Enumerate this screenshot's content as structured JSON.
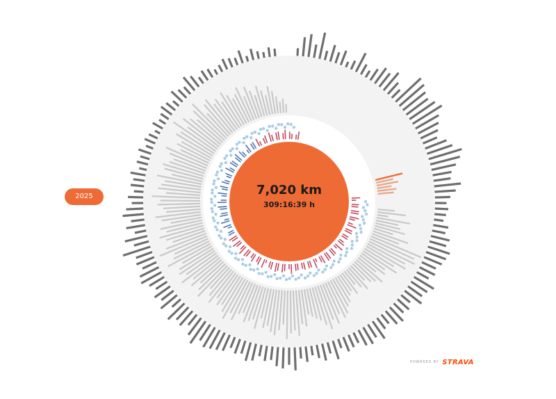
{
  "year_selector": {
    "label": "2025"
  },
  "center": {
    "distance": "7,020 km",
    "duration": "309:16:39 h"
  },
  "footer": {
    "powered_by": "POWERED BY",
    "brand": "STRAVA"
  },
  "colors": {
    "accent": "#ee6b36",
    "outer_bars": "#6e6e6e",
    "light_bars": "#c8c8c8",
    "ring_bg": "#f3f3f3",
    "heart_rate_bar": "#c0455a",
    "blue_bar": "#4a72b5",
    "speed_dot": "#a9cde4"
  },
  "chart_data": {
    "type": "radial-bar",
    "title": "",
    "note": "",
    "outer_ring_relative_values": [
      0.95,
      0.2,
      0.5,
      0.6,
      0.35,
      0.7,
      0.25,
      0.45,
      0.3,
      0.4,
      0.15,
      0.25,
      0.55,
      0.3,
      0.2,
      0.35,
      0.5,
      0.45,
      0.6,
      0.4,
      0.3,
      0.9,
      0.85,
      0.75,
      0.7,
      0.8,
      0.9,
      0.7,
      0.6,
      0.5,
      0.4,
      0.6,
      0.7,
      0.9,
      0.8,
      0.65,
      0.5,
      0.45,
      0.7,
      0.55,
      0.4,
      0.3,
      0.35,
      0.3,
      0.25,
      0.4,
      0.35,
      0.5,
      0.45,
      0.6,
      0.55,
      0.5,
      0.4,
      0.45,
      0.35,
      0.6,
      0.5,
      0.45,
      0.55,
      0.3,
      0.4,
      0.35,
      0.5,
      0.45,
      0.3,
      0.35,
      0.55,
      0.4,
      0.5,
      0.45,
      0.3,
      0.35,
      0.4,
      0.25,
      0.5,
      0.3,
      0.45,
      0.35,
      0.25,
      0.4,
      0.3,
      0.6,
      0.45,
      0.55,
      0.5,
      0.35,
      0.4,
      0.3,
      0.45,
      0.5,
      0.35,
      0.4,
      0.3,
      0.45,
      0.5,
      0.55,
      0.6,
      0.5,
      0.7,
      0.55,
      0.35,
      0.5,
      0.45,
      0.6,
      0.3,
      0.55,
      0.4,
      0.5,
      0.35,
      0.45,
      0.6,
      0.55,
      0.4,
      0.5,
      0.45,
      0.75,
      0.4,
      0.6,
      0.3,
      0.5,
      0.35,
      0.55,
      0.45,
      0.3,
      0.4,
      0.25,
      0.35,
      0.3,
      0.4,
      0.2,
      0.3,
      0.25,
      0.35,
      0.2,
      0.3,
      0.25,
      0.15,
      0.3,
      0.2,
      0.25,
      0.35,
      0.3,
      0.2,
      0.4,
      0.3,
      0.25,
      0.45,
      0.35,
      0.2,
      0.3,
      0.25,
      0.15,
      0.2,
      0.3,
      0.25,
      0.2,
      0.35,
      0.15,
      0.3,
      0.2,
      0.15,
      0.25,
      0.2,
      0.3,
      0.15
    ],
    "inner_ring_relative_values": [
      0.3,
      0.5,
      0.2,
      0.6,
      0.4,
      0.45,
      0.55,
      0.35,
      0.65,
      0.5,
      0.95,
      0.85,
      0.9,
      0.75,
      0.8,
      0.6,
      0.7,
      0.5,
      0.55,
      0.4,
      0.6,
      0.5,
      0.45,
      0.35,
      0.5,
      0.4,
      0.3,
      0.45,
      0.35,
      0.4,
      0.5,
      0.55,
      0.65,
      0.7,
      0.6,
      0.75,
      0.65,
      0.8,
      0.7,
      0.6,
      0.55,
      0.5,
      0.45,
      0.65,
      0.6,
      0.8,
      0.7,
      0.75,
      0.85,
      0.6,
      0.7,
      0.8,
      0.75,
      0.65,
      0.7,
      0.55,
      0.75,
      0.6,
      0.65,
      0.7,
      0.55,
      0.6,
      0.75,
      0.65,
      0.8,
      0.7,
      0.6,
      0.65,
      0.55,
      0.7,
      0.6,
      0.5,
      0.75,
      0.65,
      0.55,
      0.7,
      0.6,
      0.8,
      0.65,
      0.75,
      0.7,
      0.6,
      0.85,
      0.7,
      0.65,
      0.9,
      0.75,
      0.6,
      0.7,
      0.8,
      0.65,
      0.75,
      0.55,
      0.7,
      0.8,
      0.6,
      0.65,
      0.75,
      0.7,
      0.85,
      0.6,
      0.75,
      0.7,
      0.65,
      0.8,
      0.55,
      0.7,
      0.75,
      0.65,
      0.6,
      0.7,
      0.8,
      0.55,
      0.65,
      0.6,
      0.75,
      0.7,
      0.9,
      0.65,
      0.8,
      0.7,
      0.6,
      0.75,
      0.85,
      0.55,
      0.7,
      0.75,
      0.6,
      0.65,
      0.55,
      0.7,
      0.6,
      0.5,
      0.55,
      0.65,
      0.45,
      0.6,
      0.5,
      0.4,
      0.55,
      0.45,
      0.35,
      0.5,
      0.4,
      0.3,
      0.2,
      0.25,
      0.15
    ]
  }
}
